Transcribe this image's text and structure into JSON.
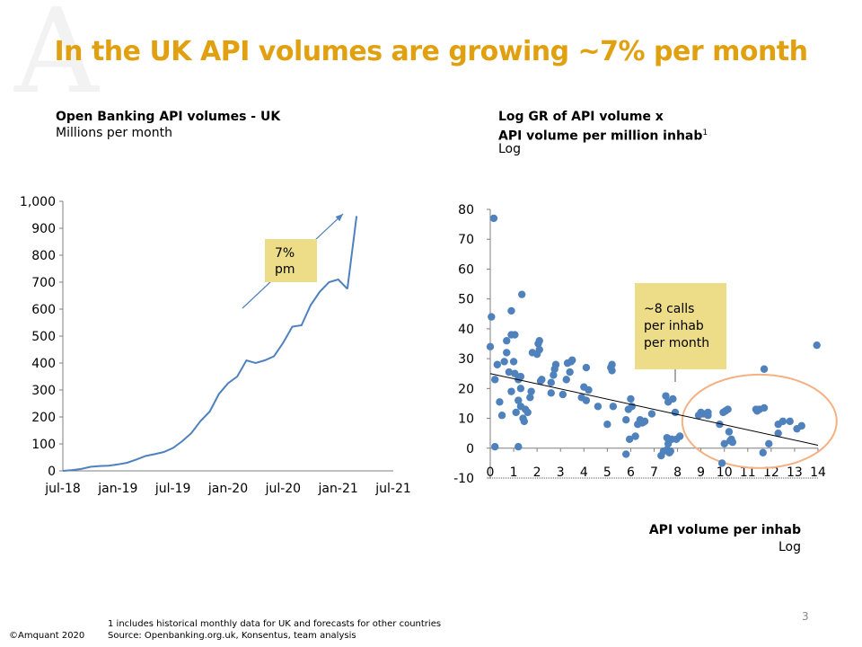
{
  "slide": {
    "watermark": "A",
    "title": "In the UK API volumes are growing ~7% per month",
    "page_number": "3",
    "copyright": "©Amquant 2020",
    "footnote": "1 includes historical monthly data for UK and forecasts for other countries",
    "source": "Source: Openbanking.org.uk, Konsentus, team analysis"
  },
  "chart_data": [
    {
      "type": "line",
      "title": "Open Banking API volumes - UK",
      "subtitle": "Millions per month",
      "ylim": [
        0,
        1000
      ],
      "yticks": [
        "1,000",
        "900",
        "800",
        "700",
        "600",
        "500",
        "400",
        "300",
        "200",
        "100",
        "0"
      ],
      "xticks": [
        "jul-18",
        "jan-19",
        "jul-19",
        "jan-20",
        "jul-20",
        "jan-21",
        "jul-21"
      ],
      "x_range_months": [
        0,
        36
      ],
      "series": [
        {
          "x": [
            0,
            1,
            2,
            3,
            4,
            5,
            6,
            7,
            8,
            9,
            10,
            11,
            12,
            13,
            14,
            15,
            16,
            17,
            18,
            19,
            20,
            21,
            22,
            23,
            24,
            25,
            26,
            27,
            28,
            29,
            30,
            31
          ],
          "values": [
            0,
            3,
            7,
            15,
            18,
            19,
            24,
            30,
            42,
            55,
            62,
            70,
            85,
            110,
            140,
            185,
            220,
            285,
            325,
            350,
            410,
            400,
            410,
            425,
            475,
            535,
            540,
            615,
            665,
            700,
            710,
            675
          ]
        },
        {
          "x": [
            31,
            32
          ],
          "values": [
            675,
            945
          ]
        }
      ],
      "annotation": {
        "lines": [
          "7%",
          "pm"
        ]
      }
    },
    {
      "type": "scatter",
      "title_line1": "Log GR of API volume x",
      "title_line2": "API volume per million inhab",
      "title_sup": "1",
      "subtitle": "Log",
      "xlabel": "API volume per inhab",
      "xlabel_sub": "Log",
      "xlim": [
        0,
        14
      ],
      "ylim": [
        -10,
        80
      ],
      "xticks": [
        "0",
        "1",
        "2",
        "3",
        "4",
        "5",
        "6",
        "7",
        "8",
        "9",
        "10",
        "11",
        "12",
        "13",
        "14"
      ],
      "yticks": [
        "80",
        "70",
        "60",
        "50",
        "40",
        "30",
        "20",
        "10",
        "0",
        "-10"
      ],
      "trendline": {
        "x": [
          0,
          14
        ],
        "y": [
          25,
          1
        ]
      },
      "annotation": {
        "lines": [
          "~8 calls",
          "per inhab",
          "per month"
        ]
      },
      "highlight": {
        "color": "#F4B183"
      },
      "points": [
        [
          0.0,
          34
        ],
        [
          0.05,
          44
        ],
        [
          0.15,
          77
        ],
        [
          0.2,
          23
        ],
        [
          0.3,
          28
        ],
        [
          0.2,
          0.5
        ],
        [
          0.4,
          15.5
        ],
        [
          0.5,
          11
        ],
        [
          0.6,
          29
        ],
        [
          0.7,
          36
        ],
        [
          0.7,
          32
        ],
        [
          0.8,
          25.5
        ],
        [
          0.9,
          46
        ],
        [
          0.9,
          38
        ],
        [
          1.05,
          38
        ],
        [
          1.0,
          29
        ],
        [
          0.9,
          19
        ],
        [
          1.05,
          25
        ],
        [
          1.1,
          12
        ],
        [
          1.2,
          16
        ],
        [
          1.2,
          23
        ],
        [
          1.3,
          14
        ],
        [
          1.3,
          20
        ],
        [
          1.3,
          24
        ],
        [
          1.35,
          51.5
        ],
        [
          1.4,
          10
        ],
        [
          1.45,
          9
        ],
        [
          1.5,
          13
        ],
        [
          1.6,
          12
        ],
        [
          1.7,
          17
        ],
        [
          1.75,
          19
        ],
        [
          1.2,
          0.5
        ],
        [
          1.8,
          32
        ],
        [
          2.0,
          31.5
        ],
        [
          2.05,
          35
        ],
        [
          2.1,
          36
        ],
        [
          2.15,
          22.5
        ],
        [
          2.1,
          33
        ],
        [
          2.2,
          23
        ],
        [
          2.6,
          18.5
        ],
        [
          2.6,
          22
        ],
        [
          2.7,
          24.5
        ],
        [
          2.75,
          26.5
        ],
        [
          2.8,
          28
        ],
        [
          3.1,
          18
        ],
        [
          3.25,
          23
        ],
        [
          3.3,
          28.5
        ],
        [
          3.4,
          25.5
        ],
        [
          3.45,
          29
        ],
        [
          3.5,
          29.5
        ],
        [
          3.9,
          17
        ],
        [
          4.0,
          20.5
        ],
        [
          4.1,
          27
        ],
        [
          4.1,
          16
        ],
        [
          4.2,
          19.5
        ],
        [
          4.6,
          14
        ],
        [
          5.0,
          8
        ],
        [
          5.15,
          27
        ],
        [
          5.2,
          28
        ],
        [
          5.2,
          26
        ],
        [
          5.25,
          14
        ],
        [
          5.8,
          9.5
        ],
        [
          5.8,
          -2
        ],
        [
          5.9,
          13
        ],
        [
          5.95,
          3
        ],
        [
          6.0,
          16.5
        ],
        [
          6.05,
          14
        ],
        [
          6.2,
          4
        ],
        [
          6.3,
          8
        ],
        [
          6.4,
          9.5
        ],
        [
          6.5,
          8.5
        ],
        [
          6.6,
          9
        ],
        [
          6.9,
          11.5
        ],
        [
          7.3,
          -2.5
        ],
        [
          7.4,
          -1
        ],
        [
          7.5,
          17.5
        ],
        [
          7.55,
          3.5
        ],
        [
          7.55,
          -0.5
        ],
        [
          7.6,
          1.5
        ],
        [
          7.6,
          15.5
        ],
        [
          7.65,
          -1.5
        ],
        [
          7.7,
          -1
        ],
        [
          7.75,
          3
        ],
        [
          7.8,
          16.5
        ],
        [
          7.9,
          12
        ],
        [
          7.95,
          3
        ],
        [
          8.1,
          4
        ],
        [
          8.9,
          11
        ],
        [
          9.0,
          12
        ],
        [
          9.1,
          11.5
        ],
        [
          9.3,
          12
        ],
        [
          9.3,
          11
        ],
        [
          9.8,
          8
        ],
        [
          9.9,
          -5
        ],
        [
          9.95,
          12
        ],
        [
          10.0,
          1.5
        ],
        [
          10.05,
          12.5
        ],
        [
          10.15,
          13
        ],
        [
          10.2,
          5.5
        ],
        [
          10.25,
          2.5
        ],
        [
          10.3,
          3
        ],
        [
          10.35,
          2
        ],
        [
          11.35,
          13
        ],
        [
          11.4,
          12.5
        ],
        [
          11.5,
          13
        ],
        [
          11.65,
          -1.5
        ],
        [
          11.7,
          13.5
        ],
        [
          11.7,
          26.5
        ],
        [
          11.9,
          1.5
        ],
        [
          12.3,
          8
        ],
        [
          12.3,
          5
        ],
        [
          12.5,
          9
        ],
        [
          12.8,
          9
        ],
        [
          13.1,
          6.5
        ],
        [
          13.3,
          7.5
        ],
        [
          13.95,
          34.5
        ]
      ]
    }
  ]
}
